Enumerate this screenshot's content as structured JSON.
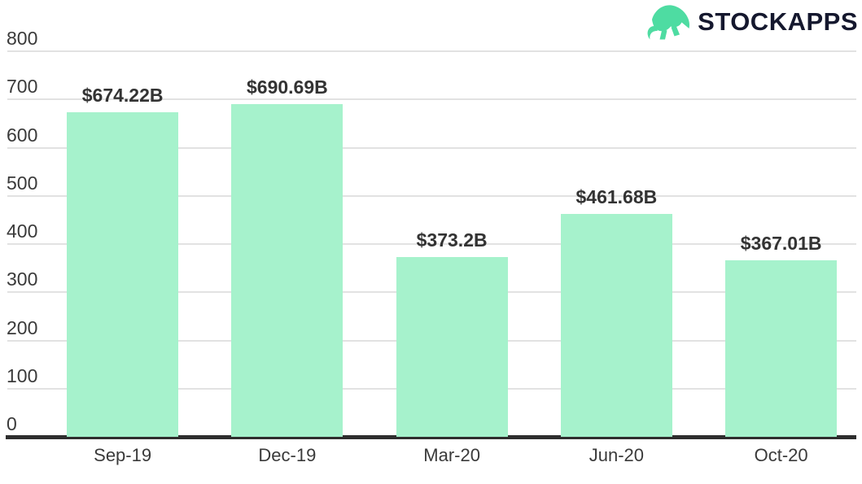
{
  "logo": {
    "brand": "STOCKAPPS",
    "icon": "bull-icon",
    "icon_color": "#4edca2",
    "text_color": "#15182e"
  },
  "chart_data": {
    "type": "bar",
    "title": "",
    "xlabel": "",
    "ylabel": "",
    "categories": [
      "Sep-19",
      "Dec-19",
      "Mar-20",
      "Jun-20",
      "Oct-20"
    ],
    "values": [
      674.22,
      690.69,
      373.2,
      461.68,
      367.01
    ],
    "value_labels": [
      "$674.22B",
      "$690.69B",
      "$373.2B",
      "$461.68B",
      "$367.01B"
    ],
    "ylim": [
      0,
      800
    ],
    "yticks": [
      0,
      100,
      200,
      300,
      400,
      500,
      600,
      700,
      800
    ],
    "grid": true,
    "legend": false,
    "bar_color": "#a6f2cc",
    "gridline_color": "#e2e2e2",
    "axis_line_color": "#2e2e2e",
    "label_color": "#333333"
  }
}
